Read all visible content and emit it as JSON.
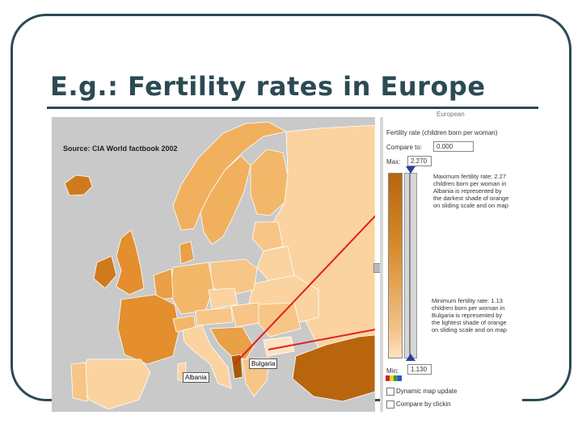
{
  "slide": {
    "title": "E.g.: Fertility rates in Europe"
  },
  "map": {
    "source": "Source: CIA World factbook 2002",
    "labels": {
      "bulgaria": "Bulgaria",
      "albania": "Albania"
    },
    "colors": {
      "background": "#c9c9c9",
      "lightest": "#fad3a0",
      "light": "#f7c586",
      "medium": "#f0b05e",
      "dark": "#e48e2e",
      "darkest": "#b8650e"
    }
  },
  "panel": {
    "cut_text": "European",
    "fertility_title": "Fertility rate (children born per woman)",
    "compare_label": "Compare to:",
    "compare_value": "0.000",
    "max_label": "Max:",
    "max_value": "2.270",
    "min_label": "Min:",
    "min_value": "1.130",
    "max_note": "Maximum fertility rate: 2.27 children born per woman in Albania is represented by the darkest shade of orange on sliding scale and on map",
    "min_note": "Minimum fertility rate: 1.13 children born per woman in Bulgaria is represented by the lightest shade of orange on sliding scale and on map",
    "dynamic_update": "Dynamic map update",
    "compare_click": "Compare by clickin"
  }
}
